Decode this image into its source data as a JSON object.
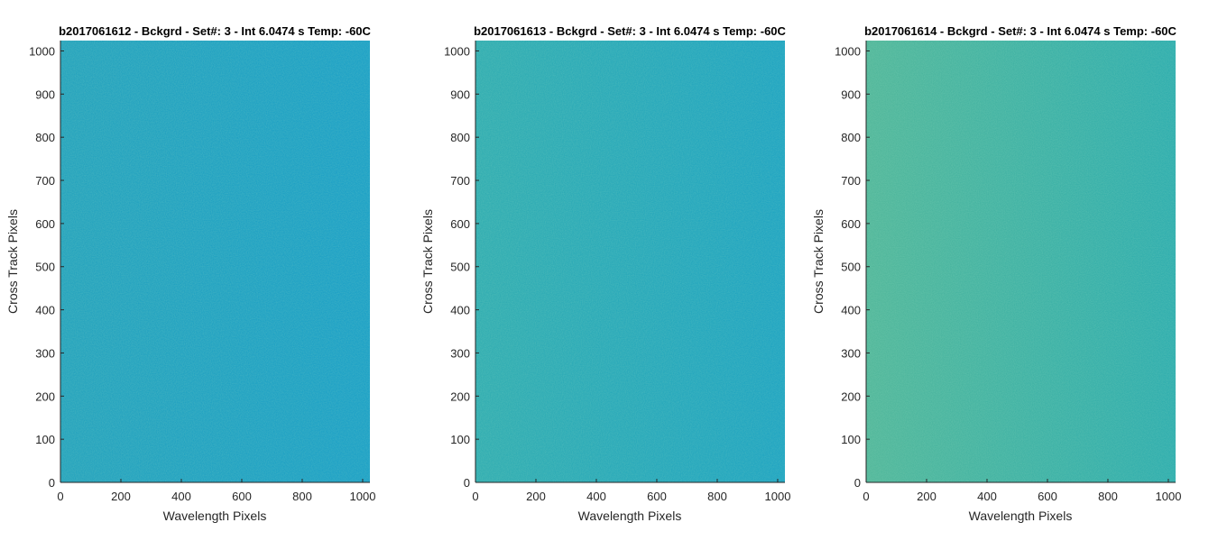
{
  "chart_data": [
    {
      "type": "heatmap",
      "title": "b2017061612 - Bckgrd - Set#: 3 - Int 6.0474 s Temp: -60C",
      "xlabel": "Wavelength Pixels",
      "ylabel": "Cross Track Pixels",
      "xlim": [
        0,
        1024
      ],
      "ylim": [
        0,
        1024
      ],
      "xticks": [
        0,
        200,
        400,
        600,
        800,
        1000
      ],
      "yticks": [
        0,
        100,
        200,
        300,
        400,
        500,
        600,
        700,
        800,
        900,
        1000
      ],
      "field": {
        "left_color": "#1d9fbd",
        "right_color": "#139cc7",
        "noise_color": "#3fb0a0"
      }
    },
    {
      "type": "heatmap",
      "title": "b2017061613 - Bckgrd - Set#: 3 - Int 6.0474 s Temp: -60C",
      "xlabel": "Wavelength Pixels",
      "ylabel": "Cross Track Pixels",
      "xlim": [
        0,
        1024
      ],
      "ylim": [
        0,
        1024
      ],
      "xticks": [
        0,
        200,
        400,
        600,
        800,
        1000
      ],
      "yticks": [
        0,
        100,
        200,
        300,
        400,
        500,
        600,
        700,
        800,
        900,
        1000
      ],
      "field": {
        "left_color": "#2aaab0",
        "right_color": "#16a0c2",
        "noise_color": "#5cbb8c"
      }
    },
    {
      "type": "heatmap",
      "title": "b2017061614 - Bckgrd - Set#: 3 - Int 6.0474 s Temp: -60C",
      "xlabel": "Wavelength Pixels",
      "ylabel": "Cross Track Pixels",
      "xlim": [
        0,
        1024
      ],
      "ylim": [
        0,
        1024
      ],
      "xticks": [
        0,
        200,
        400,
        600,
        800,
        1000
      ],
      "yticks": [
        0,
        100,
        200,
        300,
        400,
        500,
        600,
        700,
        800,
        900,
        1000
      ],
      "field": {
        "left_color": "#4db598",
        "right_color": "#27aaad",
        "noise_color": "#8cc47c"
      }
    }
  ]
}
